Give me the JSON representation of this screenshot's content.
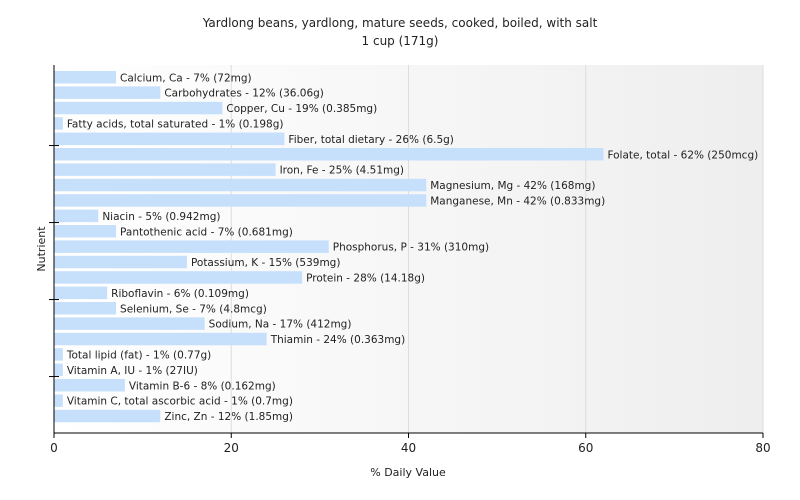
{
  "chart_data": {
    "type": "bar",
    "orientation": "horizontal",
    "title": "Yardlong beans, yardlong, mature seeds, cooked, boiled, with salt",
    "subtitle": "1 cup (171g)",
    "xlabel": "% Daily Value",
    "ylabel": "Nutrient",
    "xlim": [
      0,
      80
    ],
    "xticks": [
      0,
      20,
      40,
      60,
      80
    ],
    "grid": true,
    "bar_color": "#c6e0fc",
    "categories": [
      "Calcium, Ca",
      "Carbohydrates",
      "Copper, Cu",
      "Fatty acids, total saturated",
      "Fiber, total dietary",
      "Folate, total",
      "Iron, Fe",
      "Magnesium, Mg",
      "Manganese, Mn",
      "Niacin",
      "Pantothenic acid",
      "Phosphorus, P",
      "Potassium, K",
      "Protein",
      "Riboflavin",
      "Selenium, Se",
      "Sodium, Na",
      "Thiamin",
      "Total lipid (fat)",
      "Vitamin A, IU",
      "Vitamin B-6",
      "Vitamin C, total ascorbic acid",
      "Zinc, Zn"
    ],
    "values": [
      7,
      12,
      19,
      1,
      26,
      62,
      25,
      42,
      42,
      5,
      7,
      31,
      15,
      28,
      6,
      7,
      17,
      24,
      1,
      1,
      8,
      1,
      12
    ],
    "labels": [
      "Calcium, Ca - 7% (72mg)",
      "Carbohydrates - 12% (36.06g)",
      "Copper, Cu - 19% (0.385mg)",
      "Fatty acids, total saturated - 1% (0.198g)",
      "Fiber, total dietary - 26% (6.5g)",
      "Folate, total - 62% (250mcg)",
      "Iron, Fe - 25% (4.51mg)",
      "Magnesium, Mg - 42% (168mg)",
      "Manganese, Mn - 42% (0.833mg)",
      "Niacin - 5% (0.942mg)",
      "Pantothenic acid - 7% (0.681mg)",
      "Phosphorus, P - 31% (310mg)",
      "Potassium, K - 15% (539mg)",
      "Protein - 28% (14.18g)",
      "Riboflavin - 6% (0.109mg)",
      "Selenium, Se - 7% (4.8mcg)",
      "Sodium, Na - 17% (412mg)",
      "Thiamin - 24% (0.363mg)",
      "Total lipid (fat) - 1% (0.77g)",
      "Vitamin A, IU - 1% (27IU)",
      "Vitamin B-6 - 8% (0.162mg)",
      "Vitamin C, total ascorbic acid - 1% (0.7mg)",
      "Zinc, Zn - 12% (1.85mg)"
    ]
  }
}
